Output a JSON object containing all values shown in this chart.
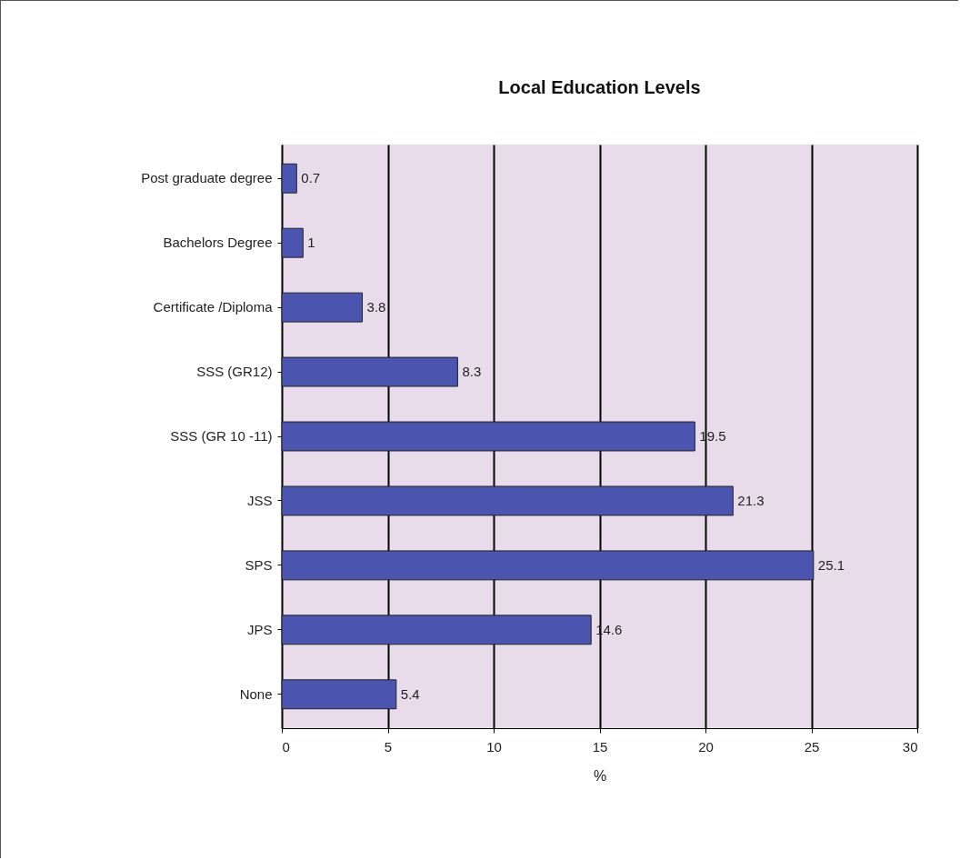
{
  "chart_data": {
    "type": "bar",
    "orientation": "horizontal",
    "title": "Local Education Levels",
    "xlabel": "%",
    "categories": [
      "Post graduate degree",
      "Bachelors Degree",
      "Certificate /Diploma",
      "SSS (GR12)",
      "SSS (GR 10 -11)",
      "JSS",
      "SPS",
      "JPS",
      "None"
    ],
    "values": [
      0.7,
      1,
      3.8,
      8.3,
      19.5,
      21.3,
      25.1,
      14.6,
      5.4
    ],
    "color": "#4b55b0",
    "xlim": [
      0,
      30
    ],
    "xticks": [
      0,
      5,
      10,
      15,
      20,
      25,
      30
    ],
    "grid": "x",
    "data_labels": true
  }
}
